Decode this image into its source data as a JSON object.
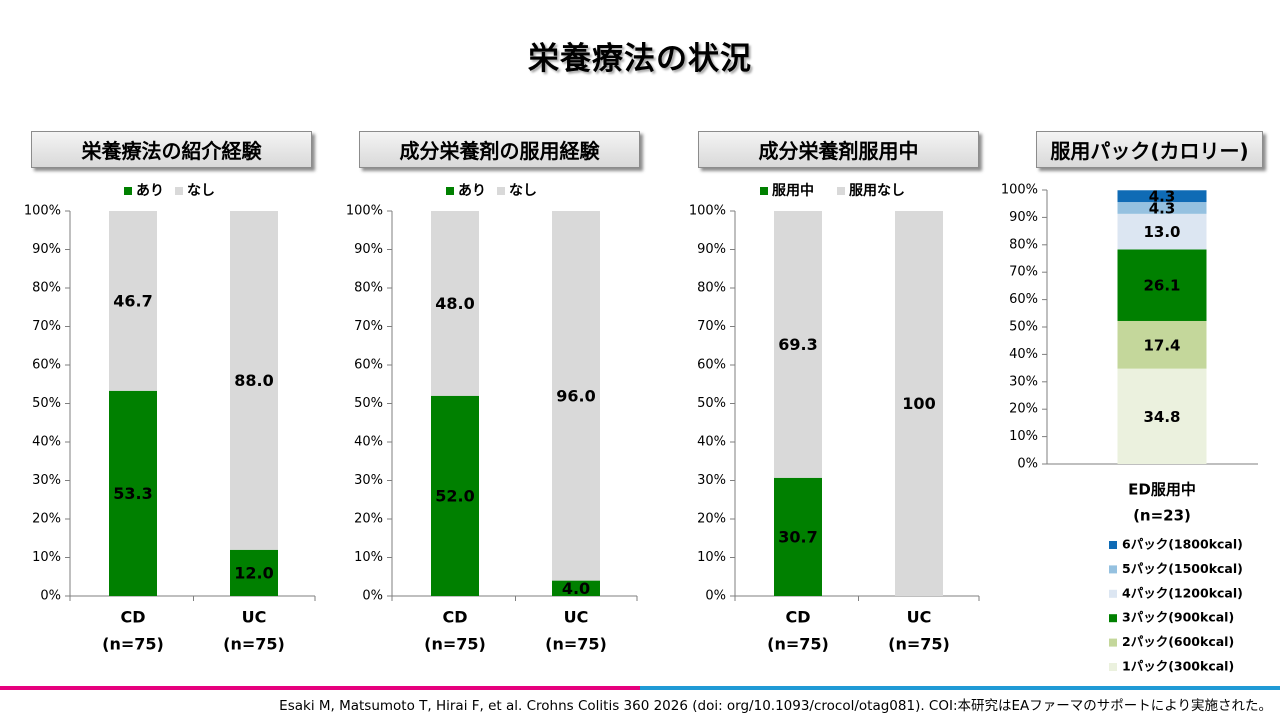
{
  "page_title": "栄養療法の状況",
  "footer": "Esaki M, Matsumoto T, Hirai F, et al. Crohns Colitis 360 2026 (doi: org/10.1093/crocol/otag081). COI:本研究はEAファーマのサポートにより実施された。",
  "colors": {
    "green": "#008000",
    "gray": "#d9d9d9",
    "pink": "#e6007e",
    "blue": "#1f9ad6"
  },
  "chart_data": [
    {
      "type": "bar",
      "stacked": true,
      "title": "栄養療法の紹介経験",
      "ylim": [
        0,
        100
      ],
      "yticks": [
        "0%",
        "10%",
        "20%",
        "30%",
        "40%",
        "50%",
        "60%",
        "70%",
        "80%",
        "90%",
        "100%"
      ],
      "categories": [
        "CD",
        "UC"
      ],
      "category_sublabels": [
        "(n=75)",
        "(n=75)"
      ],
      "legend_position": "top",
      "series": [
        {
          "name": "あり",
          "color": "#008000",
          "values": [
            53.3,
            12.0
          ],
          "labels": [
            "53.3",
            "12.0"
          ]
        },
        {
          "name": "なし",
          "color": "#d9d9d9",
          "values": [
            46.7,
            88.0
          ],
          "labels": [
            "46.7",
            "88.0"
          ]
        }
      ]
    },
    {
      "type": "bar",
      "stacked": true,
      "title": "成分栄養剤の服用経験",
      "ylim": [
        0,
        100
      ],
      "yticks": [
        "0%",
        "10%",
        "20%",
        "30%",
        "40%",
        "50%",
        "60%",
        "70%",
        "80%",
        "90%",
        "100%"
      ],
      "categories": [
        "CD",
        "UC"
      ],
      "category_sublabels": [
        "(n=75)",
        "(n=75)"
      ],
      "legend_position": "top",
      "series": [
        {
          "name": "あり",
          "color": "#008000",
          "values": [
            52.0,
            4.0
          ],
          "labels": [
            "52.0",
            "4.0"
          ]
        },
        {
          "name": "なし",
          "color": "#d9d9d9",
          "values": [
            48.0,
            96.0
          ],
          "labels": [
            "48.0",
            "96.0"
          ]
        }
      ]
    },
    {
      "type": "bar",
      "stacked": true,
      "title": "成分栄養剤服用中",
      "ylim": [
        0,
        100
      ],
      "yticks": [
        "0%",
        "10%",
        "20%",
        "30%",
        "40%",
        "50%",
        "60%",
        "70%",
        "80%",
        "90%",
        "100%"
      ],
      "categories": [
        "CD",
        "UC"
      ],
      "category_sublabels": [
        "(n=75)",
        "(n=75)"
      ],
      "legend_position": "top",
      "series": [
        {
          "name": "服用中",
          "color": "#008000",
          "values": [
            30.7,
            0
          ],
          "labels": [
            "30.7",
            "0"
          ]
        },
        {
          "name": "服用なし",
          "color": "#d9d9d9",
          "values": [
            69.3,
            100
          ],
          "labels": [
            "69.3",
            "100"
          ]
        }
      ]
    },
    {
      "type": "bar",
      "stacked": true,
      "title": "服用パック(カロリー)",
      "ylim": [
        0,
        100
      ],
      "yticks": [
        "0%",
        "10%",
        "20%",
        "30%",
        "40%",
        "50%",
        "60%",
        "70%",
        "80%",
        "90%",
        "100%"
      ],
      "categories": [
        "ED服用中"
      ],
      "category_sublabels": [
        "(n=23)"
      ],
      "legend_position": "bottom",
      "series": [
        {
          "name": "1パック(300kcal)",
          "color": "#ebf1de",
          "values": [
            34.8
          ],
          "labels": [
            "34.8"
          ]
        },
        {
          "name": "2パック(600kcal)",
          "color": "#c4d79b",
          "values": [
            17.4
          ],
          "labels": [
            "17.4"
          ]
        },
        {
          "name": "3パック(900kcal)",
          "color": "#008000",
          "values": [
            26.1
          ],
          "labels": [
            "26.1"
          ]
        },
        {
          "name": "4パック(1200kcal)",
          "color": "#dce6f2",
          "values": [
            13.0
          ],
          "labels": [
            "13.0"
          ]
        },
        {
          "name": "5パック(1500kcal)",
          "color": "#95c1e0",
          "values": [
            4.3
          ],
          "labels": [
            "4.3"
          ]
        },
        {
          "name": "6パック(1800kcal)",
          "color": "#0f6bb5",
          "values": [
            4.3
          ],
          "labels": [
            "4.3"
          ]
        }
      ]
    }
  ]
}
